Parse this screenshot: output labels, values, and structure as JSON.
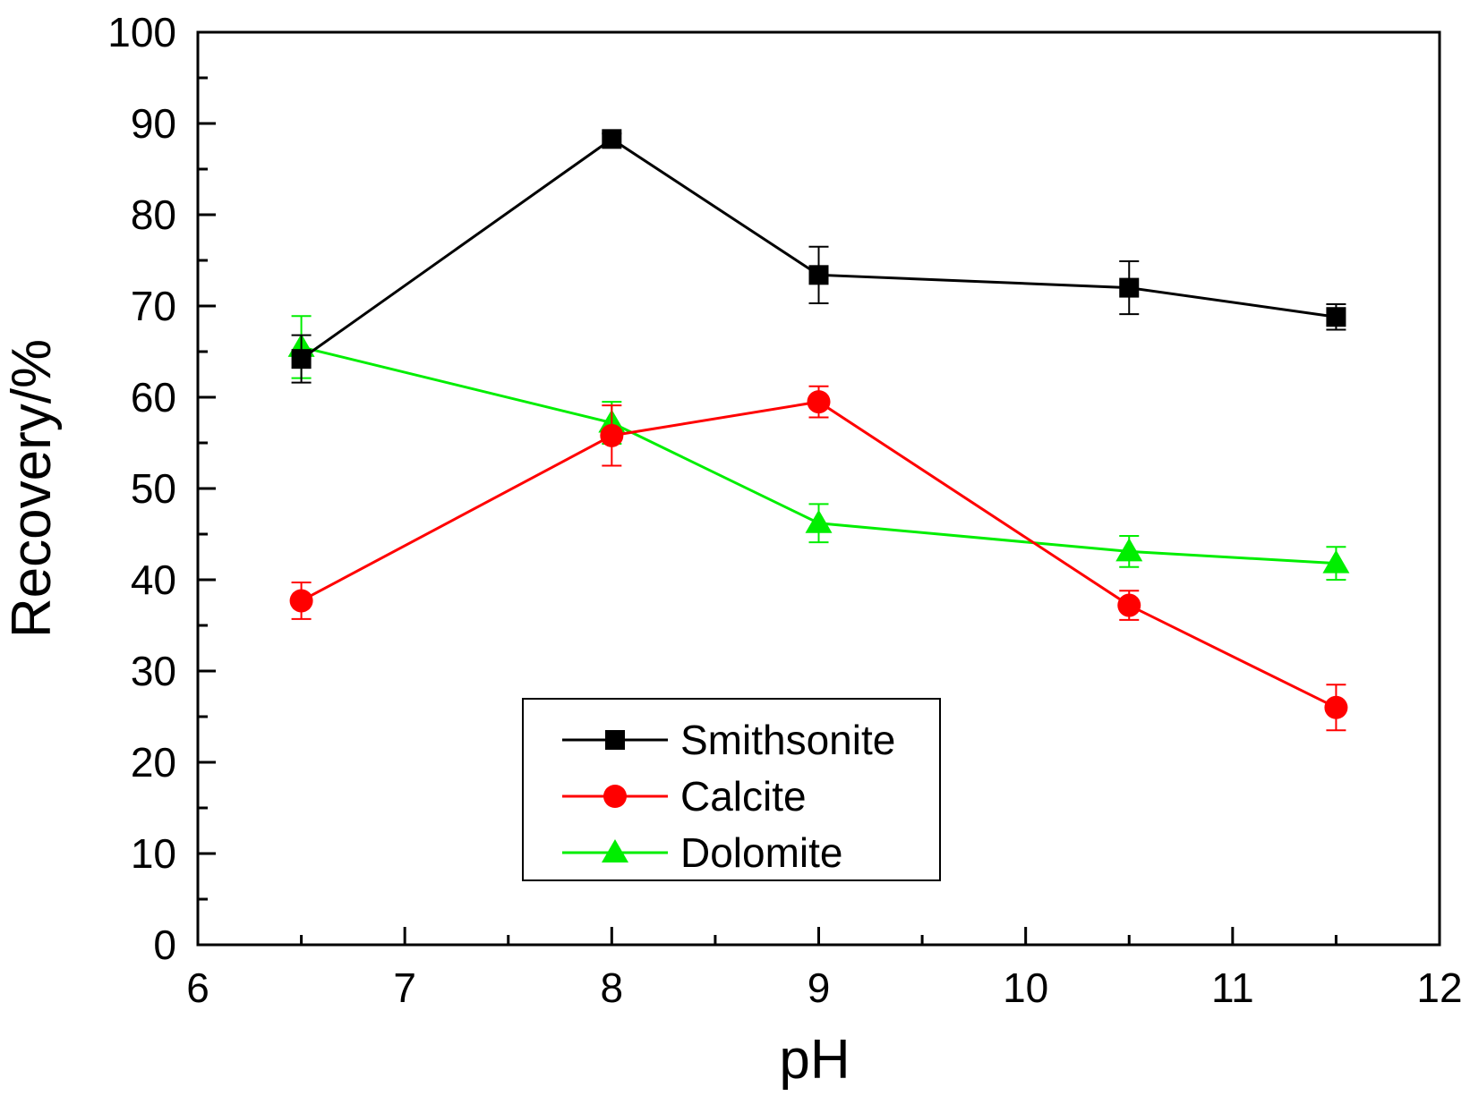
{
  "chart_data": {
    "type": "line",
    "title": "",
    "xlabel": "pH",
    "ylabel": "Recovery/%",
    "xlim": [
      6,
      12
    ],
    "ylim": [
      0,
      100
    ],
    "xticks": [
      "6",
      "7",
      "8",
      "9",
      "10",
      "11",
      "12"
    ],
    "yticks": [
      "0",
      "10",
      "20",
      "30",
      "40",
      "50",
      "60",
      "70",
      "80",
      "90",
      "100"
    ],
    "grid": false,
    "legend_position": "bottom-center",
    "x": [
      6.5,
      8,
      9,
      10.5,
      11.5
    ],
    "series": [
      {
        "name": "Smithsonite",
        "color": "#000000",
        "marker": "square",
        "values": [
          64.2,
          88.3,
          73.4,
          72.0,
          68.8
        ],
        "errors": [
          2.6,
          0.6,
          3.1,
          2.9,
          1.4
        ]
      },
      {
        "name": "Calcite",
        "color": "#ff0000",
        "marker": "circle",
        "values": [
          37.7,
          55.8,
          59.5,
          37.2,
          26.0
        ],
        "errors": [
          2.0,
          3.3,
          1.7,
          1.6,
          2.5
        ]
      },
      {
        "name": "Dolomite",
        "color": "#00ee00",
        "marker": "triangle",
        "values": [
          65.5,
          57.2,
          46.2,
          43.1,
          41.8
        ],
        "errors": [
          3.4,
          2.3,
          2.1,
          1.7,
          1.8
        ]
      }
    ]
  }
}
